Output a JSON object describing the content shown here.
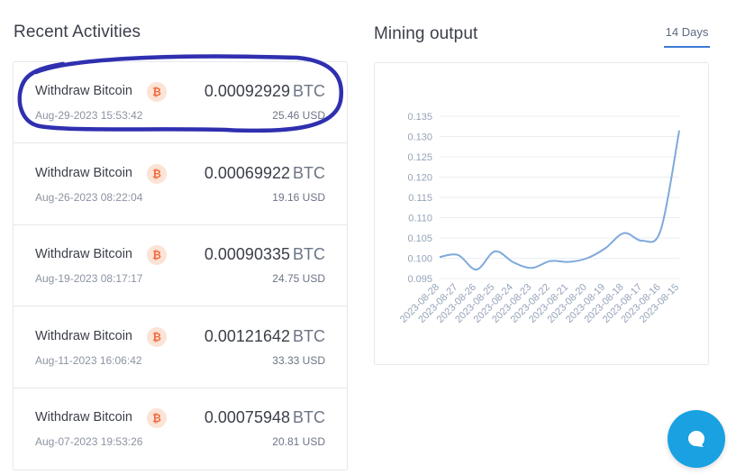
{
  "recent": {
    "title": "Recent Activities",
    "items": [
      {
        "label": "Withdraw Bitcoin",
        "icon": "bitcoin-icon",
        "icon_glyph": "₿",
        "date": "Aug-29-2023 15:53:42",
        "amount": "0.00092929",
        "unit": "BTC",
        "usd": "25.46 USD"
      },
      {
        "label": "Withdraw Bitcoin",
        "icon": "bitcoin-icon",
        "icon_glyph": "₿",
        "date": "Aug-26-2023 08:22:04",
        "amount": "0.00069922",
        "unit": "BTC",
        "usd": "19.16 USD"
      },
      {
        "label": "Withdraw Bitcoin",
        "icon": "bitcoin-icon",
        "icon_glyph": "₿",
        "date": "Aug-19-2023 08:17:17",
        "amount": "0.00090335",
        "unit": "BTC",
        "usd": "24.75 USD"
      },
      {
        "label": "Withdraw Bitcoin",
        "icon": "bitcoin-icon",
        "icon_glyph": "₿",
        "date": "Aug-11-2023 16:06:42",
        "amount": "0.00121642",
        "unit": "BTC",
        "usd": "33.33 USD"
      },
      {
        "label": "Withdraw Bitcoin",
        "icon": "bitcoin-icon",
        "icon_glyph": "₿",
        "date": "Aug-07-2023 19:53:26",
        "amount": "0.00075948",
        "unit": "BTC",
        "usd": "20.81 USD"
      }
    ]
  },
  "mining": {
    "title": "Mining output",
    "period_tab": "14 Days"
  },
  "colors": {
    "accent": "#3a7bd5",
    "line": "#7fa9dc",
    "highlight_ink": "#2f2fb0",
    "chat": "#1aa1e1",
    "bitcoin": "#f26b3a"
  },
  "chat_icon": "chat-bubble-icon",
  "chart_data": {
    "type": "line",
    "x": [
      "2023-08-28",
      "2023-08-27",
      "2023-08-26",
      "2023-08-25",
      "2023-08-24",
      "2023-08-23",
      "2023-08-22",
      "2023-08-21",
      "2023-08-20",
      "2023-08-19",
      "2023-08-18",
      "2023-08-17",
      "2023-08-16",
      "2023-08-15"
    ],
    "series": [
      {
        "values": [
          0.1003,
          0.1008,
          0.0972,
          0.1017,
          0.099,
          0.0976,
          0.0993,
          0.0991,
          0.1,
          0.1025,
          0.1062,
          0.1043,
          0.107,
          0.1315
        ]
      }
    ],
    "yticks": [
      "0.095",
      "0.100",
      "0.105",
      "0.110",
      "0.115",
      "0.120",
      "0.125",
      "0.130",
      "0.135"
    ],
    "ylim": [
      0.095,
      0.135
    ],
    "grid": true,
    "legend": "none"
  }
}
